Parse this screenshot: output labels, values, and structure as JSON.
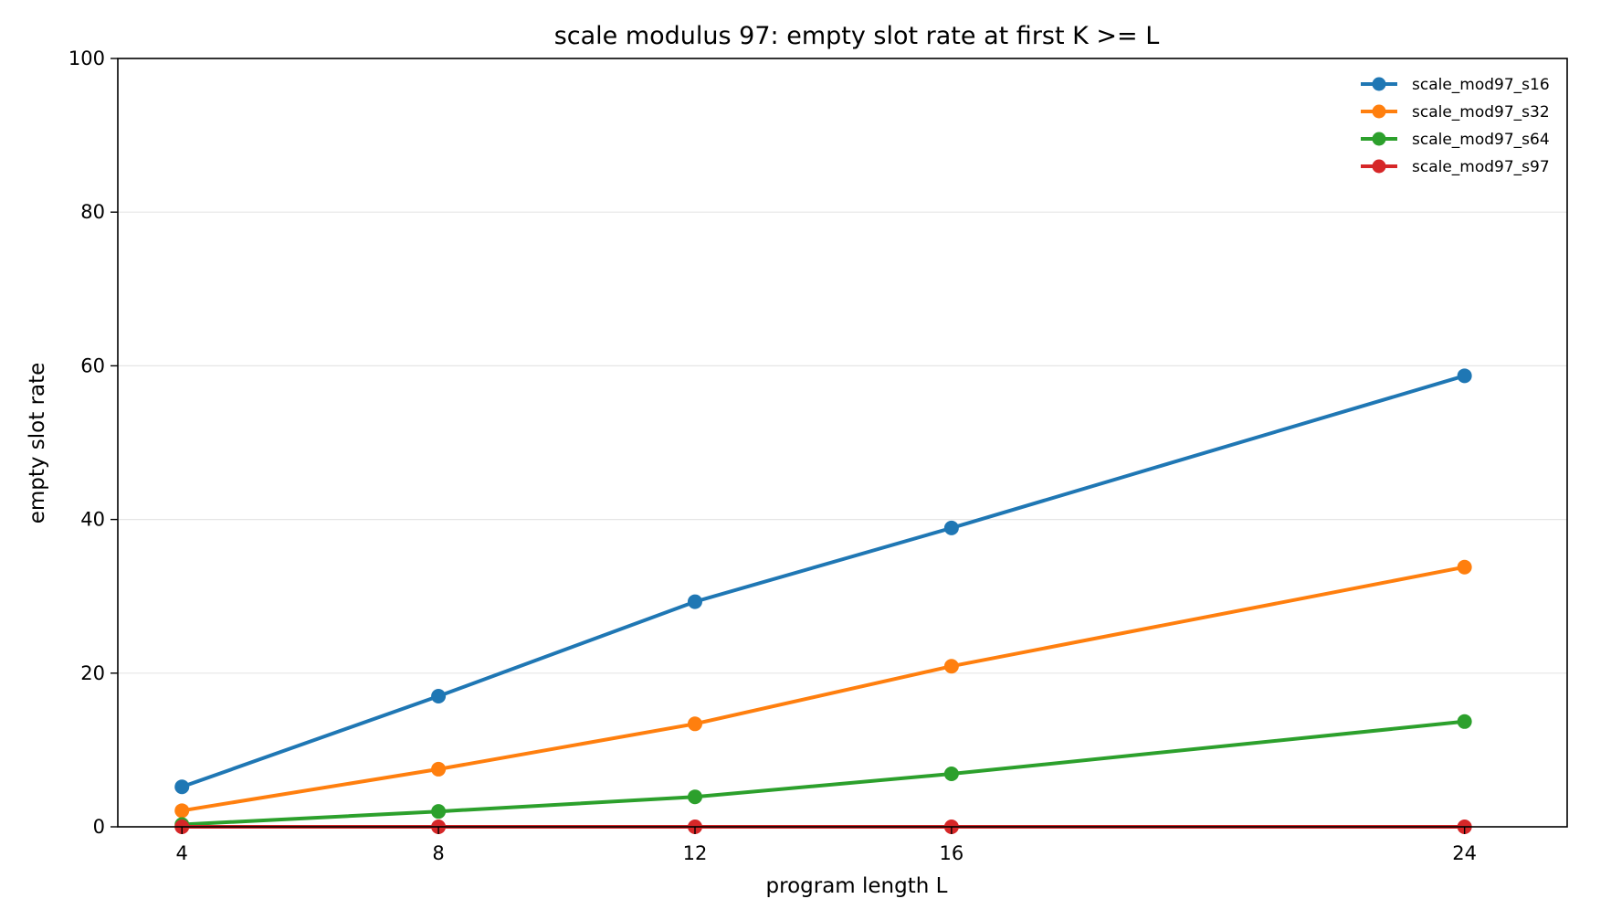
{
  "chart_data": {
    "type": "line",
    "title": "scale modulus 97: empty slot rate at first K >= L",
    "xlabel": "program length L",
    "ylabel": "empty slot rate",
    "x": [
      4,
      8,
      12,
      16,
      24
    ],
    "xlim": [
      3,
      25.6
    ],
    "ylim": [
      0,
      100
    ],
    "xticks": [
      4,
      8,
      12,
      16,
      24
    ],
    "yticks": [
      0,
      20,
      40,
      60,
      80,
      100
    ],
    "grid": "horizontal",
    "legend_position": "top-right",
    "series": [
      {
        "name": "scale_mod97_s16",
        "color": "#1f77b4",
        "values": [
          5.2,
          17.0,
          29.3,
          38.9,
          58.7
        ]
      },
      {
        "name": "scale_mod97_s32",
        "color": "#ff7f0e",
        "values": [
          2.1,
          7.5,
          13.4,
          20.9,
          33.8
        ]
      },
      {
        "name": "scale_mod97_s64",
        "color": "#2ca02c",
        "values": [
          0.3,
          2.0,
          3.9,
          6.9,
          13.7
        ]
      },
      {
        "name": "scale_mod97_s97",
        "color": "#d62728",
        "values": [
          0,
          0,
          0,
          0,
          0
        ]
      }
    ]
  }
}
